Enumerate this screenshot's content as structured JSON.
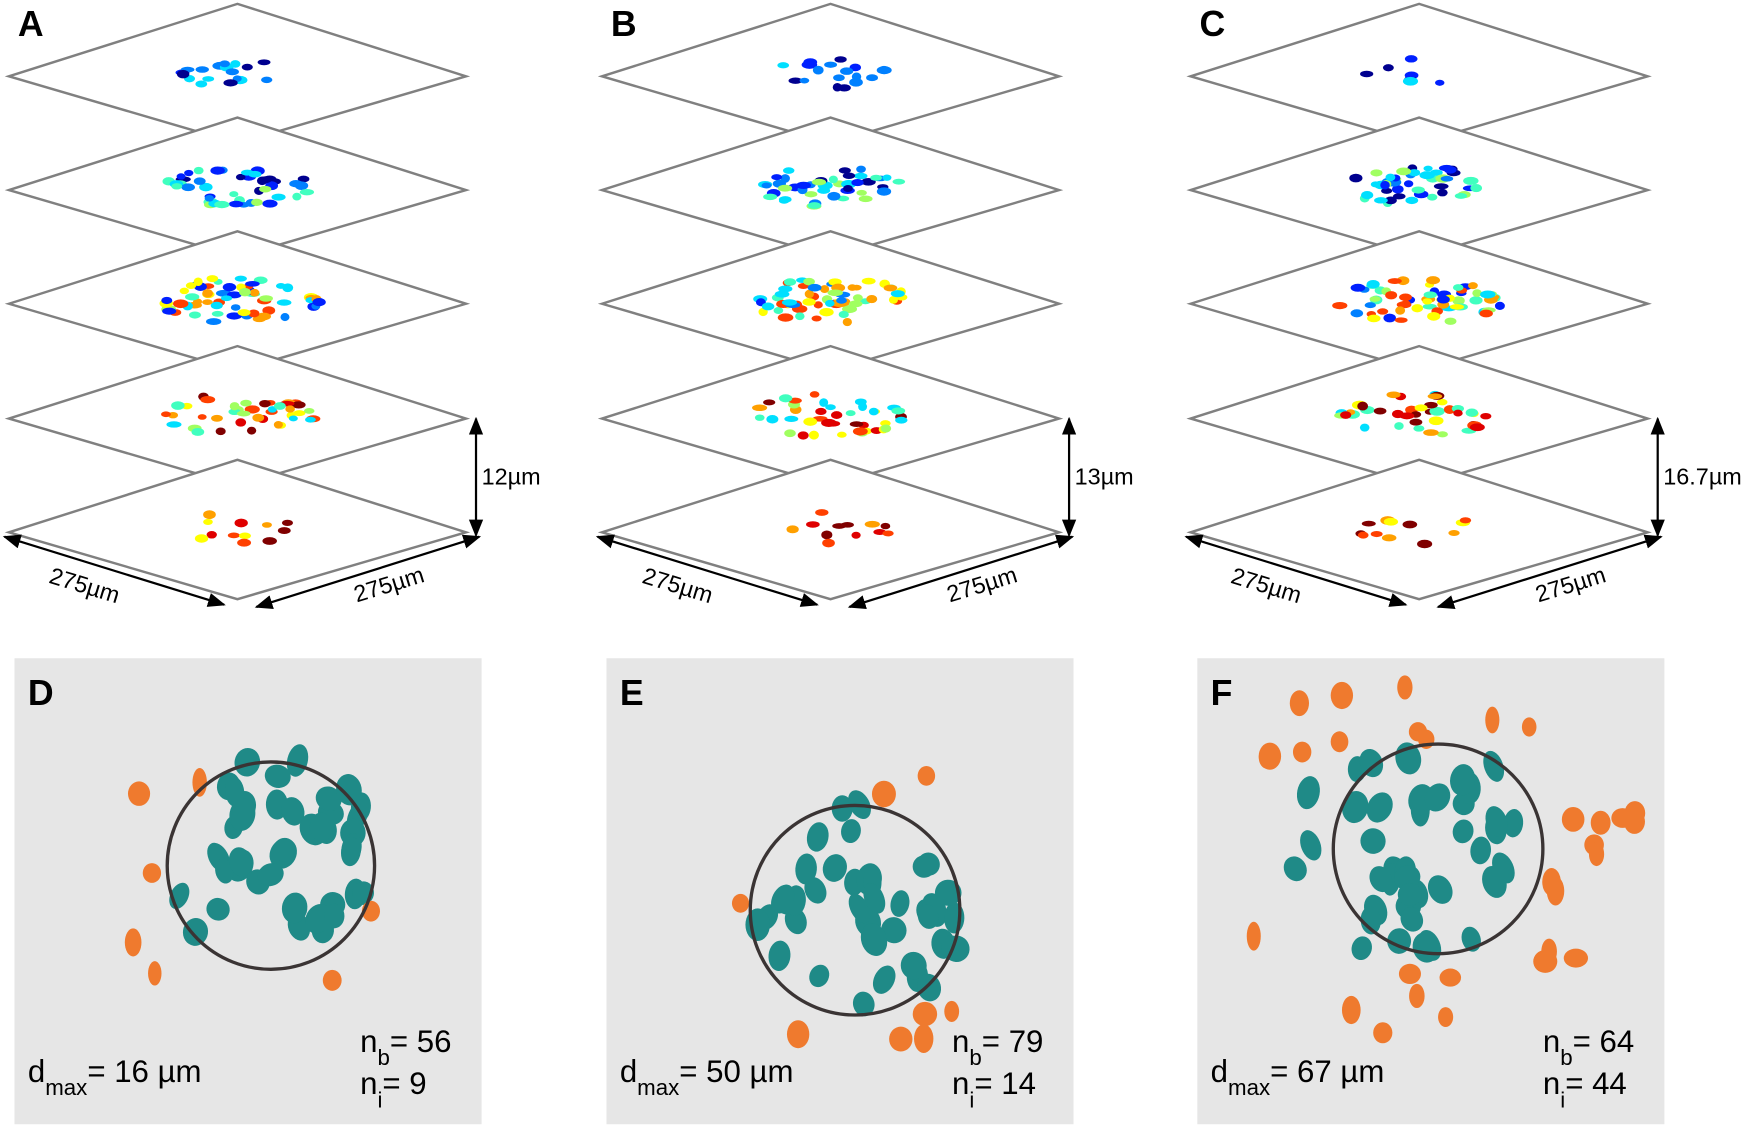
{
  "colors": {
    "inner": "#1f8a87",
    "outer": "#ef7a2e",
    "circle": "#3a3434",
    "panel_bg": "#e6e6e6",
    "plane": "#808080"
  },
  "jet": [
    "#00008f",
    "#0020ff",
    "#0080ff",
    "#00dfff",
    "#40ffbf",
    "#a0ff60",
    "#ffff00",
    "#ffa000",
    "#ff4000",
    "#df0000",
    "#800000"
  ],
  "stacks": [
    {
      "label": "A",
      "height_label": "12µm",
      "x_label": "275µm",
      "y_label": "275µm"
    },
    {
      "label": "B",
      "height_label": "13µm",
      "x_label": "275µm",
      "y_label": "275µm"
    },
    {
      "label": "C",
      "height_label": "16.7µm",
      "x_label": "275µm",
      "y_label": "275µm"
    }
  ],
  "projections": [
    {
      "label": "D",
      "dmax_sym": "d",
      "dmax_sub": "max",
      "dmax_value": "= 16 µm",
      "nb_sym": "n",
      "nb_sub": "b",
      "nb_value": "= 56",
      "ni_sym": "n",
      "ni_sub": "i",
      "ni_value": "= 9"
    },
    {
      "label": "E",
      "dmax_sym": "d",
      "dmax_sub": "max",
      "dmax_value": "= 50 µm",
      "nb_sym": "n",
      "nb_sub": "b",
      "nb_value": "= 79",
      "ni_sym": "n",
      "ni_sub": "i",
      "ni_value": "= 14"
    },
    {
      "label": "F",
      "dmax_sym": "d",
      "dmax_sub": "max",
      "dmax_value": "= 67 µm",
      "nb_sym": "n",
      "nb_sub": "b",
      "nb_value": "= 64",
      "ni_sym": "n",
      "ni_sub": "i",
      "ni_value": "= 44"
    }
  ]
}
